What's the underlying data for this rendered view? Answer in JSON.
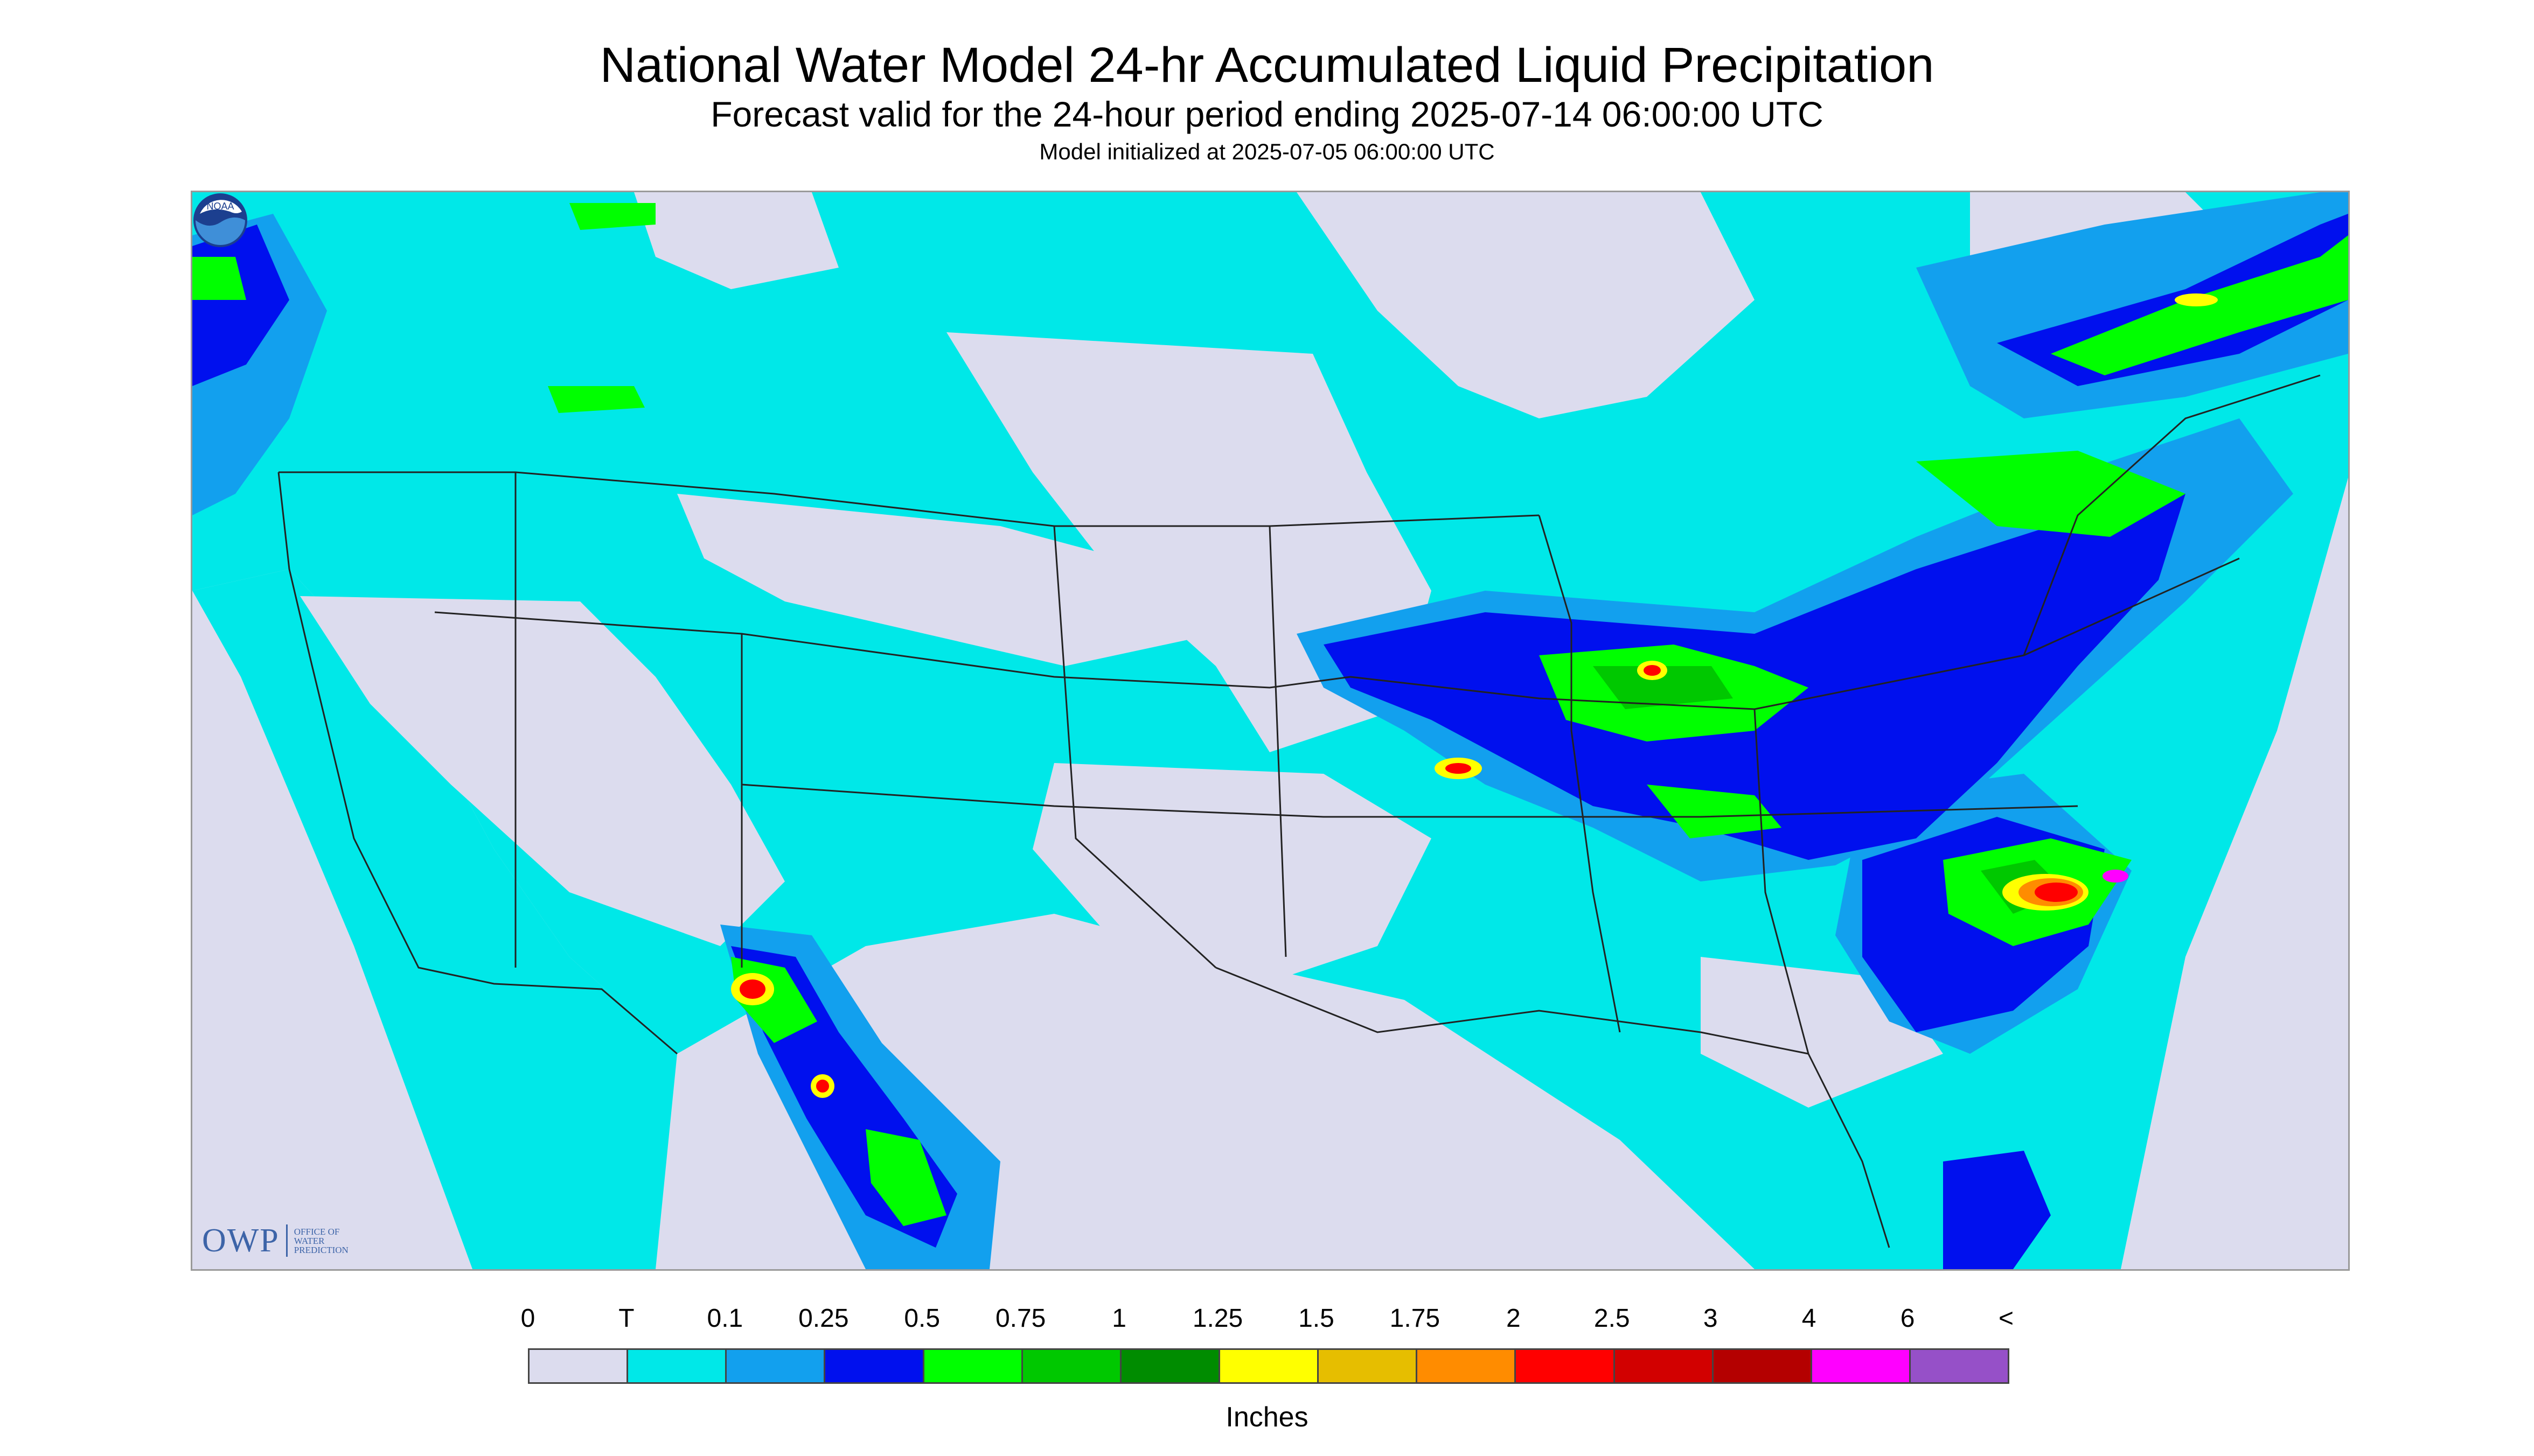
{
  "header": {
    "title": "National Water Model 24-hr Accumulated Liquid Precipitation",
    "subtitle": "Forecast valid for the 24-hour period ending 2025-07-14 06:00:00 UTC",
    "init": "Model initialized at 2025-07-05 06:00:00 UTC"
  },
  "logos": {
    "owp_text": "OWP",
    "owp_small_line1": "OFFICE OF",
    "owp_small_line2": "WATER",
    "owp_small_line3": "PREDICTION",
    "noaa_text": "NOAA"
  },
  "legend": {
    "labels": [
      "0",
      "T",
      "0.1",
      "0.25",
      "0.5",
      "0.75",
      "1",
      "1.25",
      "1.5",
      "1.75",
      "2",
      "2.5",
      "3",
      "4",
      "6",
      "<"
    ],
    "colors": [
      "#dcdcee",
      "#00e8e8",
      "#12a0ee",
      "#0010ee",
      "#00ff00",
      "#00c800",
      "#008c00",
      "#ffff00",
      "#e6be00",
      "#ff8c00",
      "#ff0000",
      "#d20000",
      "#b40000",
      "#ff00ff",
      "#9650c8"
    ],
    "units": "Inches"
  },
  "map_colors": {
    "no_rain": "#dcdcee",
    "trace": "#00e8e8",
    "light": "#12a0ee",
    "moderate": "#0010ee",
    "green": "#00ff00",
    "dark_green": "#00c800",
    "yellow": "#ffff00",
    "orange": "#ff8c00",
    "red": "#ff0000",
    "magenta": "#ff00ff",
    "boundary": "#222222"
  }
}
